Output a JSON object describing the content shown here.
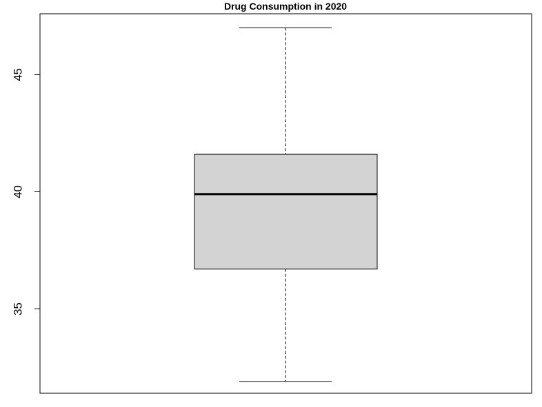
{
  "chart_data": {
    "type": "boxplot",
    "title": "Drug Consumption in 2020",
    "xlabel": "",
    "ylabel": "",
    "ylim": [
      31.4,
      47.6
    ],
    "yticks": [
      35,
      40,
      45
    ],
    "yticklabels": [
      "35",
      "40",
      "45"
    ],
    "grid": false,
    "legend": "none",
    "series": [
      {
        "whisker_low": 31.9,
        "q1": 36.7,
        "median": 39.9,
        "q3": 41.6,
        "whisker_high": 47.0
      }
    ],
    "colors": {
      "box_fill": "#d3d3d3",
      "stroke": "#000000",
      "background": "#ffffff"
    }
  }
}
